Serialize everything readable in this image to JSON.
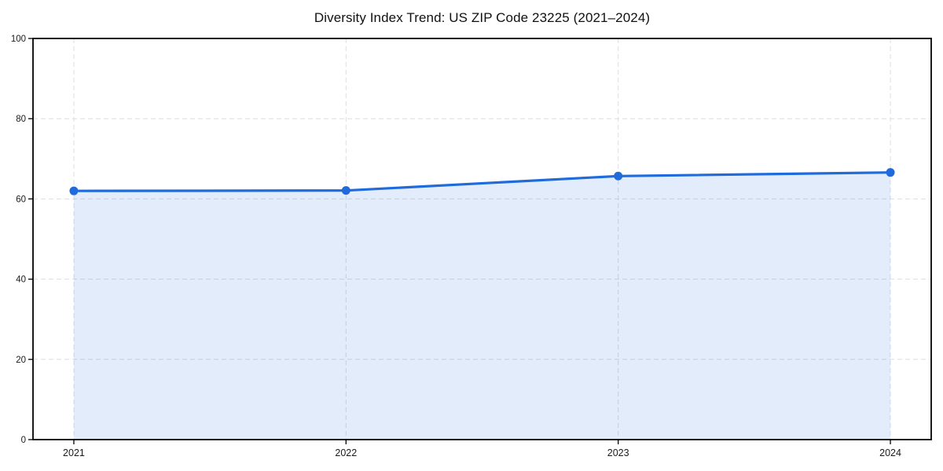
{
  "figure": {
    "background": "#ffffff"
  },
  "chart_data": {
    "type": "line",
    "title": "Diversity Index Trend: US ZIP Code 23225 (2021–2024)",
    "x": [
      2021,
      2022,
      2023,
      2024
    ],
    "x_tick_labels": [
      "2021",
      "2022",
      "2023",
      "2024"
    ],
    "series": [
      {
        "name": "Diversity Index",
        "values": [
          62,
          62.1,
          65.7,
          66.6
        ],
        "color": "#1f6bdc",
        "marker": "circle",
        "area_fill": "rgba(31,107,220,0.13)"
      }
    ],
    "ylim": [
      0,
      100
    ],
    "yticks": [
      0,
      20,
      40,
      60,
      80,
      100
    ],
    "xlabel": "",
    "ylabel": "",
    "grid": {
      "visible": true,
      "style": "dashed",
      "color": "#dedede"
    },
    "legend": "none",
    "spine_color": "#000000",
    "tick_label_color": "#1a1a1a",
    "title_color": "#111111"
  }
}
